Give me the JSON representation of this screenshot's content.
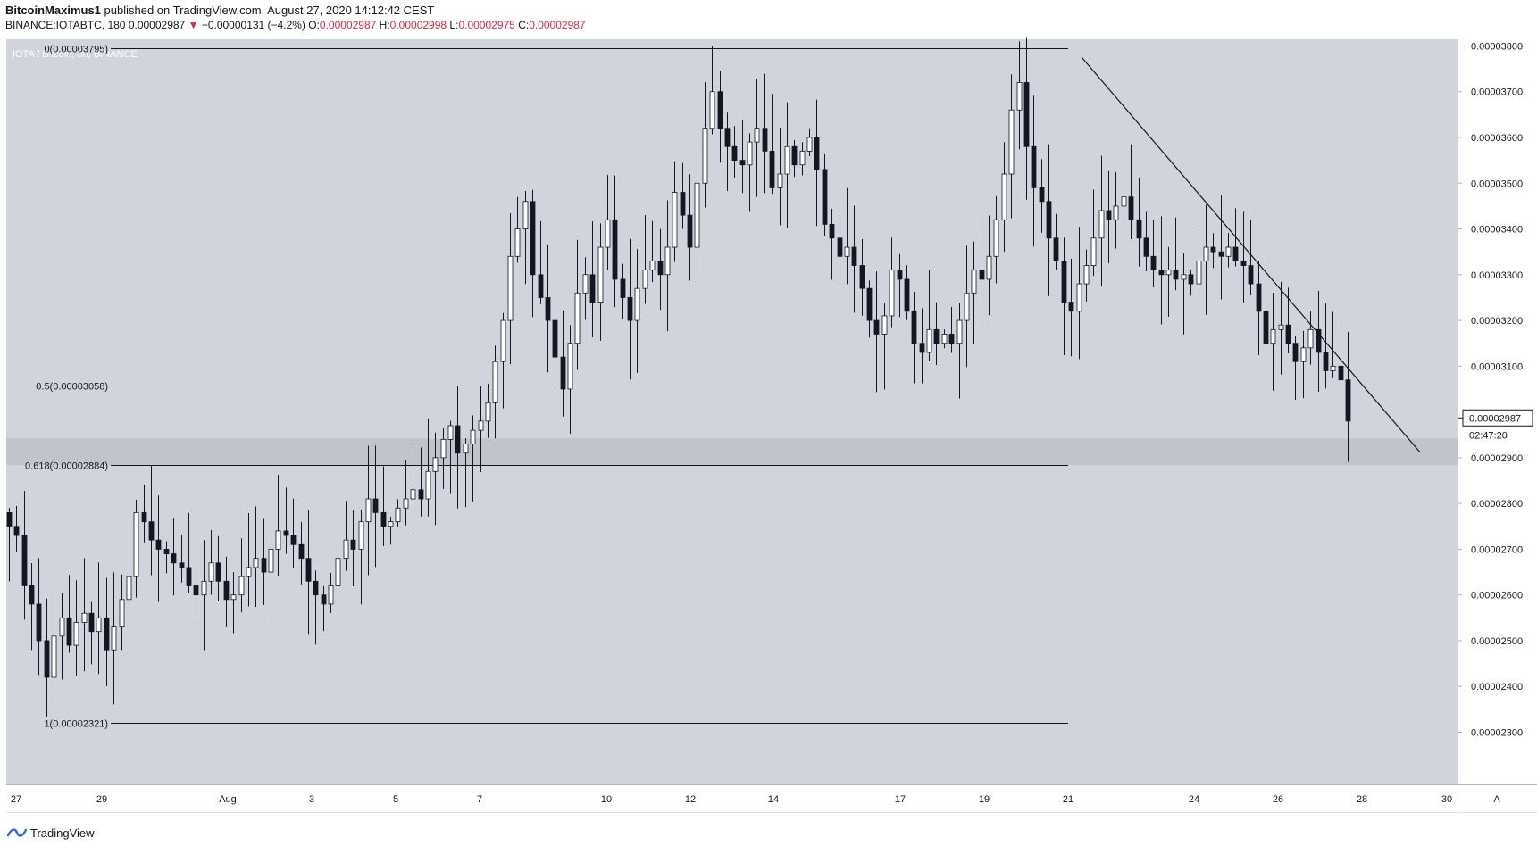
{
  "header": {
    "author": "BitcoinMaximus1",
    "published_text": " published on TradingView.com, August 27, 2020 14:12:42 CEST",
    "symbol": "BINANCE:IOTABTC, 180",
    "last_price": "0.00002987",
    "change_arrow": "▼",
    "change": "−0.00000131 (−4.2%)",
    "o_label": "O:",
    "o_value": "0.00002987",
    "h_label": "H:",
    "h_value": "0.00002998",
    "l_label": "L:",
    "l_value": "0.00002975",
    "c_label": "C:",
    "c_value": "0.00002987"
  },
  "chart_data": {
    "type": "candlestick",
    "title": "IOTA / Bitcoin, 3h, BINANCE",
    "ylim": [
      2.2e-05,
      3.89e-05
    ],
    "y_ticks": [
      2.3e-05,
      2.4e-05,
      2.5e-05,
      2.6e-05,
      2.7e-05,
      2.8e-05,
      2.9e-05,
      3.1e-05,
      3.2e-05,
      3.3e-05,
      3.4e-05,
      3.5e-05,
      3.6e-05,
      3.7e-05,
      3.8e-05
    ],
    "y_tick_labels": [
      "0.00002300",
      "0.00002400",
      "0.00002500",
      "0.00002600",
      "0.00002700",
      "0.00002800",
      "0.00002900",
      "0.00003100",
      "0.00003200",
      "0.00003300",
      "0.00003400",
      "0.00003500",
      "0.00003600",
      "0.00003700",
      "0.00003800"
    ],
    "x_tick_labels": [
      "27",
      "29",
      "Aug",
      "3",
      "5",
      "7",
      "10",
      "12",
      "14",
      "17",
      "19",
      "21",
      "24",
      "26",
      "28",
      "30"
    ],
    "last_price_label": "0.00002987",
    "countdown": "02:47:20",
    "fib_levels": [
      {
        "label": "0(0.00003795)",
        "value": 3.795e-05
      },
      {
        "label": "0.5(0.00003058)",
        "value": 3.058e-05
      },
      {
        "label": "0.618(0.00002884)",
        "value": 2.884e-05
      },
      {
        "label": "1(0.00002321)",
        "value": 2.321e-05
      }
    ],
    "support_zone": [
      2.884e-05,
      2.942e-05
    ],
    "trendline": [
      [
        3.795e-05,
        2.91e-05
      ]
    ],
    "path": [
      2.75e-05,
      2.73e-05,
      2.62e-05,
      2.58e-05,
      2.5e-05,
      2.42e-05,
      2.51e-05,
      2.55e-05,
      2.49e-05,
      2.54e-05,
      2.56e-05,
      2.52e-05,
      2.55e-05,
      2.48e-05,
      2.53e-05,
      2.59e-05,
      2.64e-05,
      2.78e-05,
      2.76e-05,
      2.72e-05,
      2.7e-05,
      2.69e-05,
      2.67e-05,
      2.66e-05,
      2.62e-05,
      2.6e-05,
      2.63e-05,
      2.67e-05,
      2.63e-05,
      2.59e-05,
      2.6e-05,
      2.64e-05,
      2.66e-05,
      2.68e-05,
      2.65e-05,
      2.7e-05,
      2.74e-05,
      2.73e-05,
      2.71e-05,
      2.68e-05,
      2.63e-05,
      2.6e-05,
      2.58e-05,
      2.62e-05,
      2.68e-05,
      2.72e-05,
      2.7e-05,
      2.76e-05,
      2.81e-05,
      2.78e-05,
      2.75e-05,
      2.76e-05,
      2.79e-05,
      2.81e-05,
      2.83e-05,
      2.81e-05,
      2.87e-05,
      2.9e-05,
      2.94e-05,
      2.97e-05,
      2.91e-05,
      2.93e-05,
      2.96e-05,
      2.98e-05,
      3.02e-05,
      3.11e-05,
      3.2e-05,
      3.34e-05,
      3.4e-05,
      3.46e-05,
      3.3e-05,
      3.25e-05,
      3.2e-05,
      3.12e-05,
      3.05e-05,
      3.15e-05,
      3.26e-05,
      3.3e-05,
      3.24e-05,
      3.36e-05,
      3.42e-05,
      3.29e-05,
      3.25e-05,
      3.2e-05,
      3.27e-05,
      3.31e-05,
      3.33e-05,
      3.3e-05,
      3.36e-05,
      3.48e-05,
      3.43e-05,
      3.36e-05,
      3.5e-05,
      3.62e-05,
      3.7e-05,
      3.62e-05,
      3.58e-05,
      3.55e-05,
      3.54e-05,
      3.59e-05,
      3.62e-05,
      3.57e-05,
      3.49e-05,
      3.52e-05,
      3.58e-05,
      3.54e-05,
      3.57e-05,
      3.6e-05,
      3.53e-05,
      3.41e-05,
      3.38e-05,
      3.34e-05,
      3.36e-05,
      3.32e-05,
      3.27e-05,
      3.2e-05,
      3.17e-05,
      3.21e-05,
      3.31e-05,
      3.29e-05,
      3.22e-05,
      3.15e-05,
      3.13e-05,
      3.18e-05,
      3.15e-05,
      3.17e-05,
      3.15e-05,
      3.2e-05,
      3.26e-05,
      3.31e-05,
      3.29e-05,
      3.34e-05,
      3.42e-05,
      3.52e-05,
      3.66e-05,
      3.72e-05,
      3.58e-05,
      3.49e-05,
      3.46e-05,
      3.38e-05,
      3.33e-05,
      3.24e-05,
      3.22e-05,
      3.28e-05,
      3.32e-05,
      3.38e-05,
      3.44e-05,
      3.42e-05,
      3.45e-05,
      3.47e-05,
      3.42e-05,
      3.38e-05,
      3.34e-05,
      3.31e-05,
      3.3e-05,
      3.31e-05,
      3.29e-05,
      3.3e-05,
      3.28e-05,
      3.33e-05,
      3.36e-05,
      3.35e-05,
      3.34e-05,
      3.36e-05,
      3.33e-05,
      3.32e-05,
      3.28e-05,
      3.22e-05,
      3.15e-05,
      3.18e-05,
      3.19e-05,
      3.15e-05,
      3.11e-05,
      3.14e-05,
      3.18e-05,
      3.13e-05,
      3.09e-05,
      3.1e-05,
      3.07e-05,
      2.98e-05
    ]
  },
  "footer": {
    "brand": "TradingView",
    "axis_mode": "A"
  }
}
